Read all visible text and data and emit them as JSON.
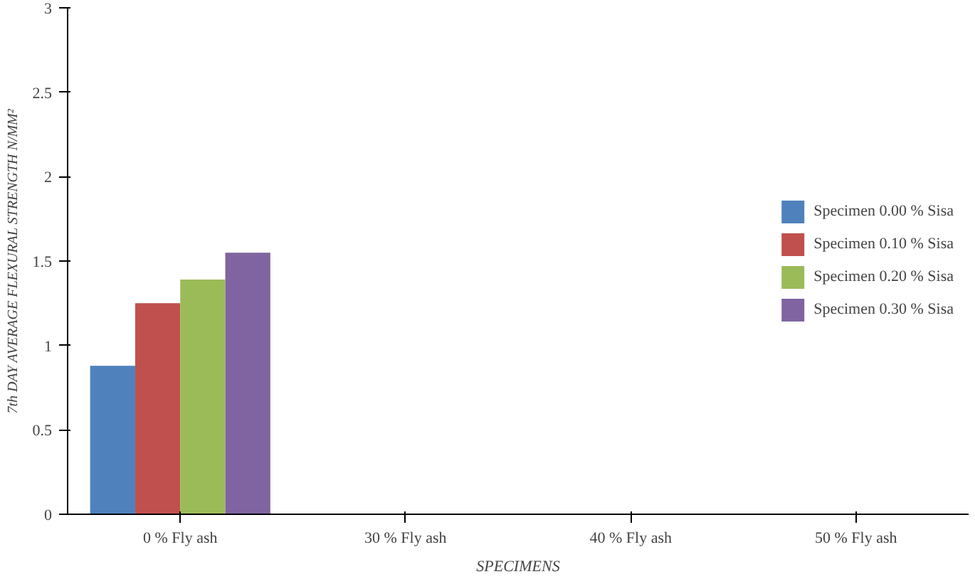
{
  "chart_data": {
    "type": "bar",
    "xlabel": "SPECIMENS",
    "ylabel": "7th DAY AVERAGE FLEXURAL STRENGTH N/MM²",
    "categories": [
      "0 % Fly ash",
      "30 % Fly ash",
      "40 % Fly ash",
      "50 % Fly ash"
    ],
    "series": [
      {
        "name": "Specimen 0.00 % Sisa",
        "color": "#4f81bd",
        "values": [
          0.88,
          null,
          null,
          null
        ]
      },
      {
        "name": "Specimen 0.10 % Sisa",
        "color": "#c0504d",
        "values": [
          1.25,
          null,
          null,
          null
        ]
      },
      {
        "name": "Specimen 0.20 % Sisa",
        "color": "#9bbb59",
        "values": [
          1.39,
          null,
          null,
          null
        ]
      },
      {
        "name": "Specimen 0.30 % Sisa",
        "color": "#8064a2",
        "values": [
          1.55,
          null,
          null,
          null
        ]
      }
    ],
    "ylim": [
      0,
      3
    ],
    "yticks": [
      0,
      0.5,
      1,
      1.5,
      2,
      2.5,
      3
    ],
    "legend": "right"
  }
}
